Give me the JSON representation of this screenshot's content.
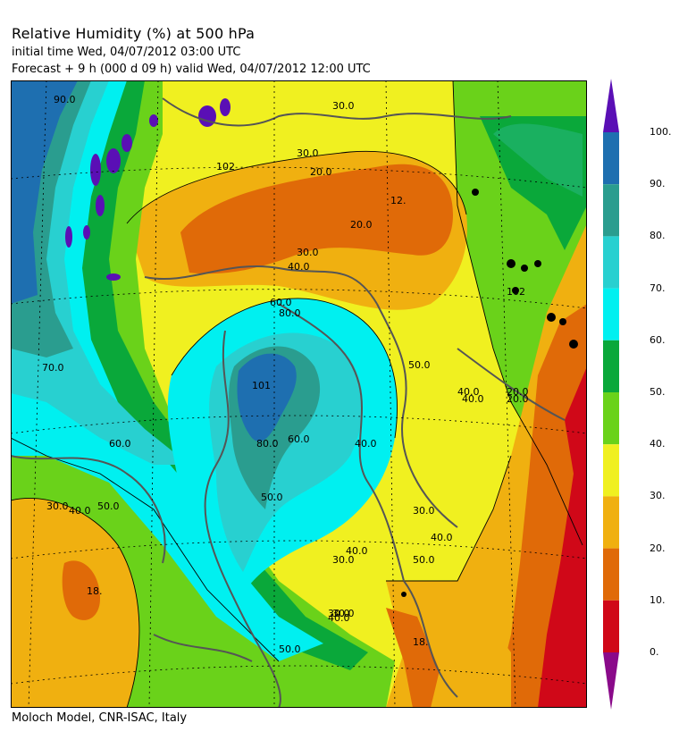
{
  "header": {
    "title": "Relative Humidity (%) at 500 hPa",
    "initial_time": "initial time  Wed, 04/07/2012  03:00 UTC",
    "forecast": "Forecast  +   9 h  (000 d 09 h)  valid Wed, 04/07/2012 12:00 UTC"
  },
  "footer": {
    "credit": "Moloch Model, CNR-ISAC, Italy"
  },
  "legend": {
    "levels": [
      "100.",
      "90.",
      "80.",
      "70.",
      "60.",
      "50.",
      "40.",
      "30.",
      "20.",
      "10.",
      "0."
    ],
    "colors": {
      "above_100": "#5a0fb5",
      "90_100": "#1e6fb0",
      "80_90": "#2a9d8f",
      "70_80": "#28d0d0",
      "60_70": "#00f0f0",
      "50_60": "#0aa83a",
      "40_50": "#6ad21a",
      "30_40": "#f0f020",
      "20_30": "#f0b010",
      "10_20": "#e06a08",
      "0_10": "#d00818",
      "below_0": "#8a0a8a"
    }
  },
  "contour_labels": [
    "90.0",
    "80.0",
    "70.0",
    "60.0",
    "50.0",
    "40.0",
    "30.0",
    "20.0",
    "12.",
    "18.",
    "101",
    "102"
  ],
  "map_features": {
    "coastlines": true,
    "country_borders": true,
    "lat_lon_grid": "dotted"
  }
}
